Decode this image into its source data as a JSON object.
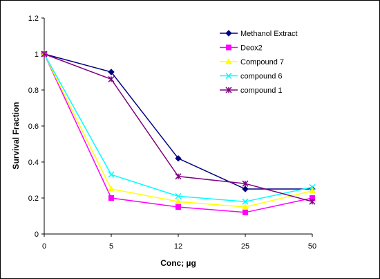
{
  "chart_data": {
    "type": "line",
    "title": "",
    "xlabel": "Conc; µg",
    "ylabel": "Survival Fraction",
    "categories": [
      "0",
      "5",
      "12",
      "25",
      "50"
    ],
    "ylim": [
      0,
      1.2
    ],
    "yticks": [
      "0",
      "0.2",
      "0.4",
      "0.6",
      "0.8",
      "1",
      "1.2"
    ],
    "grid": false,
    "legend_position": "top-right",
    "series": [
      {
        "name": "Methanol Extract",
        "color": "#000080",
        "marker": "diamond",
        "values": [
          1.0,
          0.9,
          0.42,
          0.25,
          0.25
        ]
      },
      {
        "name": "Deox2",
        "color": "#FF00FF",
        "marker": "square",
        "values": [
          1.0,
          0.2,
          0.15,
          0.12,
          0.2
        ]
      },
      {
        "name": "Compound 7",
        "color": "#FFFF00",
        "marker": "triangle",
        "values": [
          1.0,
          0.25,
          0.18,
          0.15,
          0.24
        ]
      },
      {
        "name": "compound 6",
        "color": "#00FFFF",
        "marker": "x",
        "values": [
          1.0,
          0.33,
          0.21,
          0.18,
          0.26
        ]
      },
      {
        "name": "compound 1",
        "color": "#800080",
        "marker": "star",
        "values": [
          1.0,
          0.86,
          0.32,
          0.28,
          0.18
        ]
      }
    ]
  }
}
